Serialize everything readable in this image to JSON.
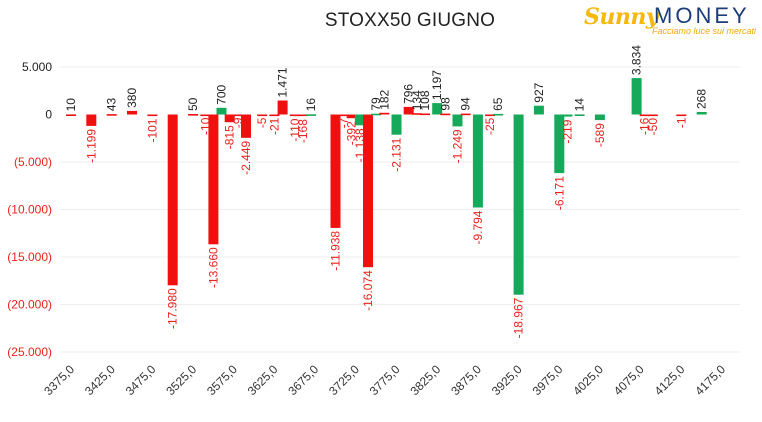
{
  "header": {
    "title": "STOXX50 GIUGNO",
    "logo": {
      "sunny": "Sunny",
      "money": "MONEY",
      "tagline": "Facciamo luce sui mercati"
    }
  },
  "colors": {
    "positive": "#16a95a",
    "negative": "#f01010",
    "positive_label": "#222222",
    "negative_label": "#e8231e",
    "grid": "#eeeeee"
  },
  "chart_data": {
    "type": "bar",
    "title": "STOXX50 GIUGNO",
    "xlabel": "",
    "ylabel": "",
    "ylim": [
      -25000,
      5000
    ],
    "grid": true,
    "y_ticks": [
      5000,
      0,
      -5000,
      -10000,
      -15000,
      -20000,
      -25000
    ],
    "y_tick_labels": [
      "5.000",
      "0",
      "(5.000)",
      "(10.000)",
      "(15.000)",
      "(20.000)",
      "(25.000)"
    ],
    "x_ticks": [
      3375,
      3425,
      3475,
      3525,
      3575,
      3625,
      3675,
      3725,
      3775,
      3825,
      3875,
      3925,
      3975,
      4025,
      4075,
      4125,
      4175
    ],
    "x_tick_labels": [
      "3375,0",
      "3425,0",
      "3475,0",
      "3525,0",
      "3575,0",
      "3625,0",
      "3675,0",
      "3725,0",
      "3775,0",
      "3825,0",
      "3875,0",
      "3925,0",
      "3975,0",
      "4025,0",
      "4075,0",
      "4125,0",
      "4175,0"
    ],
    "bars": [
      {
        "strike": 3375,
        "value": 10,
        "label": "10",
        "color": "negative"
      },
      {
        "strike": 3400,
        "value": -1199,
        "label": "-1.199",
        "color": "negative"
      },
      {
        "strike": 3425,
        "value": 43,
        "label": "43",
        "color": "negative"
      },
      {
        "strike": 3450,
        "value": 380,
        "label": "380",
        "color": "negative"
      },
      {
        "strike": 3475,
        "value": -101,
        "label": "-101",
        "color": "negative"
      },
      {
        "strike": 3500,
        "value": -17980,
        "label": "-17.980",
        "color": "negative"
      },
      {
        "strike": 3525,
        "value": 50,
        "label": "50",
        "color": "negative"
      },
      {
        "strike": 3540,
        "value": -10,
        "label": "-10",
        "color": "negative"
      },
      {
        "strike": 3550,
        "value": -13660,
        "label": "-13.660",
        "color": "negative"
      },
      {
        "strike": 3560,
        "value": 700,
        "label": "700",
        "color": "positive"
      },
      {
        "strike": 3570,
        "value": -815,
        "label": "-815",
        "color": "negative"
      },
      {
        "strike": 3580,
        "value": -9,
        "label": "-9",
        "color": "negative"
      },
      {
        "strike": 3590,
        "value": -2449,
        "label": "-2.449",
        "color": "negative"
      },
      {
        "strike": 3610,
        "value": -5,
        "label": "-5",
        "color": "negative"
      },
      {
        "strike": 3625,
        "value": -21,
        "label": "-21",
        "color": "negative"
      },
      {
        "strike": 3635,
        "value": 1471,
        "label": "1.471",
        "color": "negative"
      },
      {
        "strike": 3650,
        "value": -110,
        "label": "-110",
        "color": "negative"
      },
      {
        "strike": 3660,
        "value": -168,
        "label": "-168",
        "color": "negative"
      },
      {
        "strike": 3670,
        "value": 16,
        "label": "16",
        "color": "positive"
      },
      {
        "strike": 3700,
        "value": -11938,
        "label": "-11.938",
        "color": "negative"
      },
      {
        "strike": 3710,
        "value": -7,
        "label": "-7",
        "color": "negative"
      },
      {
        "strike": 3720,
        "value": -392,
        "label": "-392",
        "color": "negative"
      },
      {
        "strike": 3730,
        "value": -1138,
        "label": "-1.138",
        "color": "positive"
      },
      {
        "strike": 3740,
        "value": -16074,
        "label": "-16.074",
        "color": "negative"
      },
      {
        "strike": 3750,
        "value": 79,
        "label": "79",
        "color": "positive"
      },
      {
        "strike": 3760,
        "value": 182,
        "label": "182",
        "color": "negative"
      },
      {
        "strike": 3775,
        "value": -2131,
        "label": "-2.131",
        "color": "positive"
      },
      {
        "strike": 3790,
        "value": 796,
        "label": "796",
        "color": "negative"
      },
      {
        "strike": 3800,
        "value": 134,
        "label": "134",
        "color": "negative"
      },
      {
        "strike": 3810,
        "value": 108,
        "label": "108",
        "color": "negative"
      },
      {
        "strike": 3825,
        "value": 1197,
        "label": "1.197",
        "color": "positive"
      },
      {
        "strike": 3835,
        "value": 98,
        "label": "98",
        "color": "negative"
      },
      {
        "strike": 3850,
        "value": -1249,
        "label": "-1.249",
        "color": "positive"
      },
      {
        "strike": 3860,
        "value": 94,
        "label": "94",
        "color": "negative"
      },
      {
        "strike": 3875,
        "value": -9794,
        "label": "-9.794",
        "color": "positive"
      },
      {
        "strike": 3890,
        "value": -25,
        "label": "-25",
        "color": "negative"
      },
      {
        "strike": 3900,
        "value": 65,
        "label": "65",
        "color": "positive"
      },
      {
        "strike": 3925,
        "value": -18967,
        "label": "-18.967",
        "color": "positive"
      },
      {
        "strike": 3950,
        "value": 927,
        "label": "927",
        "color": "positive"
      },
      {
        "strike": 3975,
        "value": -6171,
        "label": "-6.171",
        "color": "positive"
      },
      {
        "strike": 3985,
        "value": -219,
        "label": "-219",
        "color": "positive"
      },
      {
        "strike": 4000,
        "value": 14,
        "label": "14",
        "color": "positive"
      },
      {
        "strike": 4025,
        "value": -589,
        "label": "-589",
        "color": "positive"
      },
      {
        "strike": 4070,
        "value": 3834,
        "label": "3.834",
        "color": "positive"
      },
      {
        "strike": 4080,
        "value": -16,
        "label": "-16",
        "color": "negative"
      },
      {
        "strike": 4090,
        "value": -50,
        "label": "-50",
        "color": "negative"
      },
      {
        "strike": 4125,
        "value": -1,
        "label": "-1",
        "color": "negative"
      },
      {
        "strike": 4150,
        "value": 268,
        "label": "268",
        "color": "positive"
      }
    ]
  }
}
